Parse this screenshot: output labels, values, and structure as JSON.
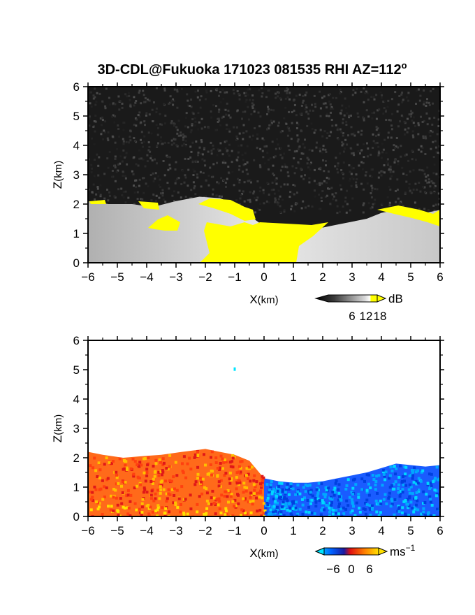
{
  "chart_data": [
    {
      "type": "heatmap",
      "panel": "reflectivity",
      "title": "3D-CDL@Fukuoka 171023 081535 RHI AZ=112",
      "title_superscript": "o",
      "xlabel": "X",
      "xlabel_unit": "(km)",
      "ylabel": "Z",
      "ylabel_unit": "(km)",
      "xlim": [
        -6,
        6
      ],
      "ylim": [
        0,
        6
      ],
      "xticks": [
        -6,
        -5,
        -4,
        -3,
        -2,
        -1,
        0,
        1,
        2,
        3,
        4,
        5,
        6
      ],
      "yticks": [
        0,
        1,
        2,
        3,
        4,
        5,
        6
      ],
      "colorbar": {
        "unit": "dB",
        "ticks": [
          6,
          12,
          18
        ],
        "range": [
          0,
          21
        ],
        "colors": [
          "#000000",
          "#3a3a3a",
          "#7a7a7a",
          "#b4b4b4",
          "#e6e6e6",
          "#ffff00"
        ]
      },
      "colors": {
        "noise": "#1a1a1a",
        "saturated": "#ffff00"
      },
      "echo_top_km": [
        [
          -6,
          2.1
        ],
        [
          -5.3,
          2.0
        ],
        [
          -4.5,
          2.0
        ],
        [
          -3.8,
          1.9
        ],
        [
          -3.0,
          2.1
        ],
        [
          -2.2,
          2.25
        ],
        [
          -1.5,
          2.2
        ],
        [
          -1.0,
          2.0
        ],
        [
          -0.5,
          1.6
        ],
        [
          0,
          1.25
        ],
        [
          0.5,
          1.2
        ],
        [
          1.0,
          1.15
        ],
        [
          1.5,
          1.15
        ],
        [
          2.0,
          1.2
        ],
        [
          2.5,
          1.3
        ],
        [
          3.0,
          1.4
        ],
        [
          3.5,
          1.5
        ],
        [
          4.0,
          1.7
        ],
        [
          4.5,
          1.8
        ],
        [
          5.0,
          1.75
        ],
        [
          5.5,
          1.7
        ],
        [
          6,
          1.8
        ]
      ]
    },
    {
      "type": "heatmap",
      "panel": "doppler_velocity",
      "xlabel": "X",
      "xlabel_unit": "(km)",
      "ylabel": "Z",
      "ylabel_unit": "(km)",
      "xlim": [
        -6,
        6
      ],
      "ylim": [
        0,
        6
      ],
      "xticks": [
        -6,
        -5,
        -4,
        -3,
        -2,
        -1,
        0,
        1,
        2,
        3,
        4,
        5,
        6
      ],
      "yticks": [
        0,
        1,
        2,
        3,
        4,
        5,
        6
      ],
      "colorbar": {
        "unit": "ms",
        "unit_superscript": "−1",
        "ticks": [
          "−6",
          "0",
          "6"
        ],
        "tick_values": [
          -6,
          0,
          6
        ],
        "range": [
          -9,
          9
        ],
        "colors": [
          "#00e5ff",
          "#0050ff",
          "#1010a0",
          "#ff1010",
          "#ff7a00",
          "#ffd000"
        ]
      },
      "isolated_point": {
        "x": -1.0,
        "z": 5.02,
        "color": "#00e5ff"
      },
      "echo_top_km": [
        [
          -6,
          2.2
        ],
        [
          -5.5,
          2.1
        ],
        [
          -4.8,
          2.0
        ],
        [
          -4.2,
          2.05
        ],
        [
          -3.5,
          2.1
        ],
        [
          -2.8,
          2.2
        ],
        [
          -2.0,
          2.3
        ],
        [
          -1.5,
          2.2
        ],
        [
          -1.0,
          2.1
        ],
        [
          -0.5,
          1.9
        ],
        [
          0,
          1.3
        ],
        [
          0.5,
          1.2
        ],
        [
          1.0,
          1.15
        ],
        [
          1.5,
          1.15
        ],
        [
          2.0,
          1.2
        ],
        [
          2.5,
          1.3
        ],
        [
          3.0,
          1.4
        ],
        [
          3.5,
          1.5
        ],
        [
          4.0,
          1.65
        ],
        [
          4.5,
          1.8
        ],
        [
          5.0,
          1.75
        ],
        [
          5.5,
          1.7
        ],
        [
          6,
          1.75
        ]
      ]
    }
  ]
}
